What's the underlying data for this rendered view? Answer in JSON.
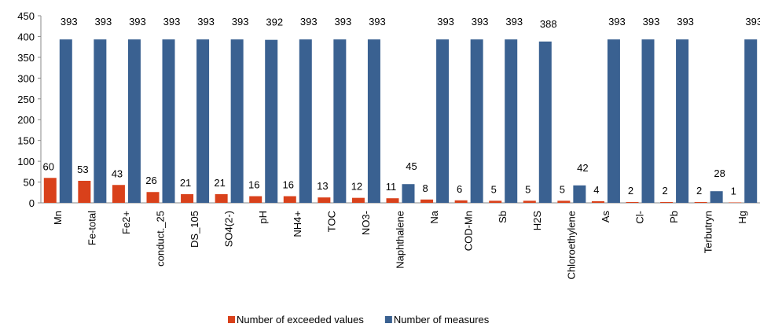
{
  "chart_data": {
    "type": "bar",
    "categories": [
      "Mn",
      "Fe-total",
      "Fe2+",
      "conduct._25",
      "DS_105",
      "SO4(2-)",
      "pH",
      "NH4+",
      "TOC",
      "NO3-",
      "Naphthalene",
      "Na",
      "COD-Mn",
      "Sb",
      "H2S",
      "Chloroethylene",
      "As",
      "Cl-",
      "Pb",
      "Terbutryn",
      "Hg"
    ],
    "series": [
      {
        "name": "Number of exceeded values",
        "color": "#d9411b",
        "values": [
          60,
          53,
          43,
          26,
          21,
          21,
          16,
          16,
          13,
          12,
          11,
          8,
          6,
          5,
          5,
          5,
          4,
          2,
          2,
          2,
          1
        ]
      },
      {
        "name": "Number of measures",
        "color": "#3a6191",
        "values": [
          393,
          393,
          393,
          393,
          393,
          393,
          392,
          393,
          393,
          393,
          45,
          393,
          393,
          393,
          388,
          42,
          393,
          393,
          393,
          28,
          393
        ]
      }
    ],
    "ylim": [
      0,
      450
    ],
    "yticks": [
      0,
      50,
      100,
      150,
      200,
      250,
      300,
      350,
      400,
      450
    ],
    "legend": "bottom"
  }
}
